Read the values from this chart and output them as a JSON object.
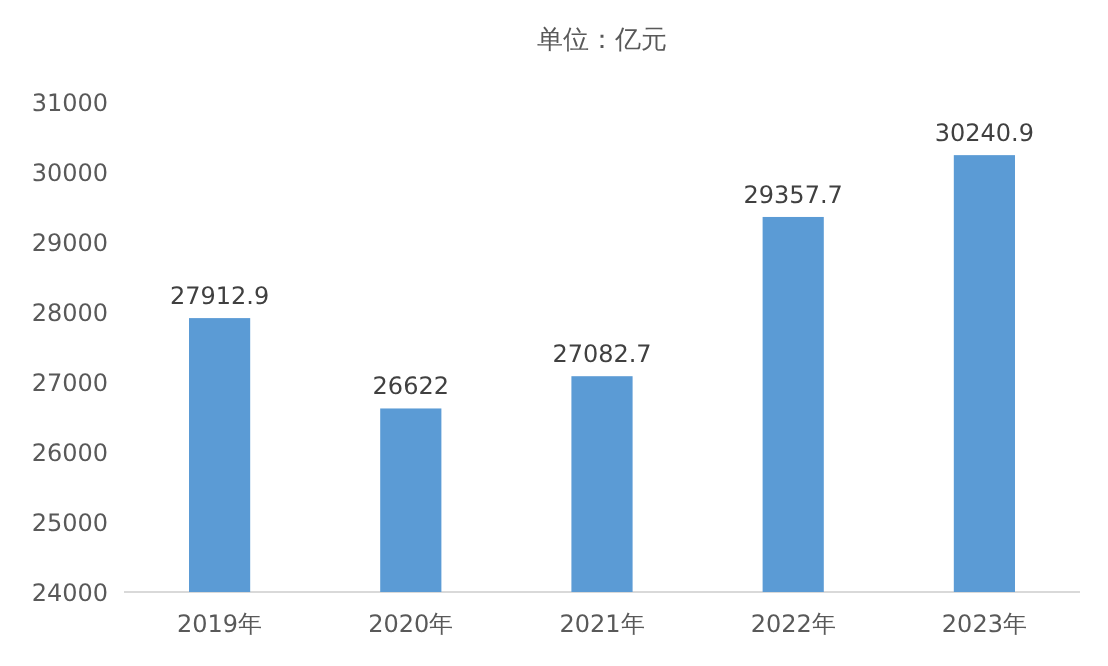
{
  "chart_data": {
    "type": "bar",
    "title": "单位：亿元",
    "categories": [
      "2019年",
      "2020年",
      "2021年",
      "2022年",
      "2023年"
    ],
    "values": [
      27912.9,
      26622,
      27082.7,
      29357.7,
      30240.9
    ],
    "color": "#5b9bd5",
    "ylim": [
      24000,
      31000
    ],
    "yticks": [
      24000,
      25000,
      26000,
      27000,
      28000,
      29000,
      30000,
      31000
    ],
    "data_labels": true
  }
}
